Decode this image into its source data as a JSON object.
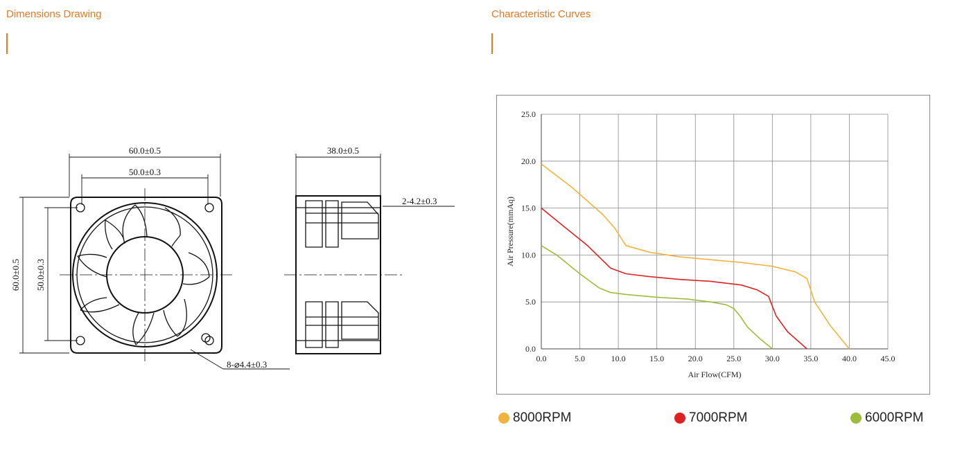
{
  "sections": {
    "dimensions_title": "Dimensions Drawing",
    "curves_title": "Characteristic Curves"
  },
  "colors": {
    "accent": "#e87722",
    "grid": "#8a8a8a"
  },
  "drawing": {
    "width_outer": "60.0±0.5",
    "width_inner": "50.0±0.3",
    "depth": "38.0±0.5",
    "height_outer": "60.0±0.5",
    "height_inner": "50.0±0.3",
    "tab_hole": "2-4.2±0.3",
    "mount_hole": "8-⌀4.4±0.3"
  },
  "chart_data": {
    "type": "line",
    "xlabel": "Air Flow(CFM)",
    "ylabel": "Air Pressure(mmAq)",
    "xlim": [
      0,
      45
    ],
    "ylim": [
      0,
      25
    ],
    "xticks": [
      "0.0",
      "5.0",
      "10.0",
      "15.0",
      "20.0",
      "25.0",
      "30.0",
      "35.0",
      "40.0",
      "45.0"
    ],
    "yticks": [
      "0.0",
      "5.0",
      "10.0",
      "15.0",
      "20.0",
      "25.0"
    ],
    "grid": true,
    "legend_position": "bottom",
    "series": [
      {
        "name": "8000RPM",
        "color": "#f2b33d",
        "x": [
          0,
          4,
          8,
          9.5,
          11,
          14,
          18,
          22,
          26,
          30,
          33,
          34.5,
          35.5,
          37.5,
          40
        ],
        "y": [
          19.7,
          17.2,
          14.3,
          12.9,
          11,
          10.3,
          9.8,
          9.5,
          9.2,
          8.8,
          8.2,
          7.5,
          5,
          2.5,
          0
        ]
      },
      {
        "name": "7000RPM",
        "color": "#e02020",
        "x": [
          0,
          3,
          6,
          9,
          11,
          14,
          18,
          22,
          26,
          28,
          29.5,
          30.5,
          32,
          34.5
        ],
        "y": [
          15,
          13,
          11,
          8.6,
          8,
          7.7,
          7.4,
          7.2,
          6.8,
          6.3,
          5.6,
          3.5,
          1.8,
          0
        ]
      },
      {
        "name": "6000RPM",
        "color": "#9cbd3a",
        "x": [
          0,
          2,
          5,
          7.5,
          9,
          11,
          15,
          19,
          22,
          24,
          25,
          25.8,
          26.8,
          28.5,
          30
        ],
        "y": [
          11,
          10,
          8,
          6.5,
          6,
          5.8,
          5.5,
          5.3,
          5,
          4.7,
          4.3,
          3.5,
          2.3,
          1,
          0
        ]
      }
    ]
  }
}
